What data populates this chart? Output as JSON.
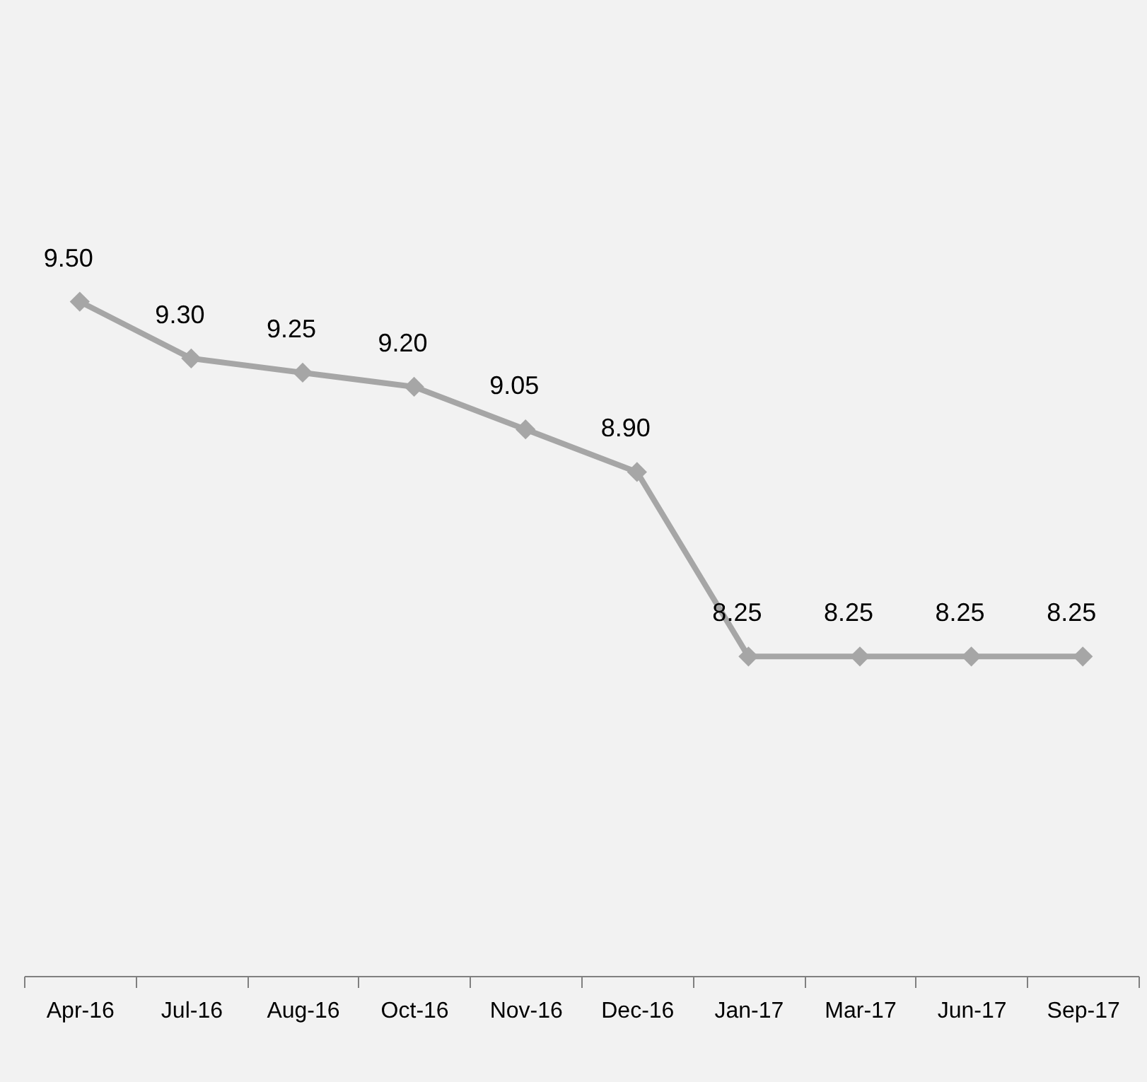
{
  "chart_data": {
    "type": "line",
    "categories": [
      "Apr-16",
      "Jul-16",
      "Aug-16",
      "Oct-16",
      "Nov-16",
      "Dec-16",
      "Jan-17",
      "Mar-17",
      "Jun-17",
      "Sep-17"
    ],
    "series": [
      {
        "color": "#a6a6a6",
        "values": [
          9.5,
          9.3,
          9.25,
          9.2,
          9.05,
          8.9,
          8.25,
          8.25,
          8.25,
          8.25
        ],
        "value_labels": [
          "9.50",
          "9.30",
          "9.25",
          "9.20",
          "9.05",
          "8.90",
          "8.25",
          "8.25",
          "8.25",
          "8.25"
        ]
      }
    ],
    "marker": "diamond",
    "line_style": "solid",
    "tick_labels": "x"
  }
}
